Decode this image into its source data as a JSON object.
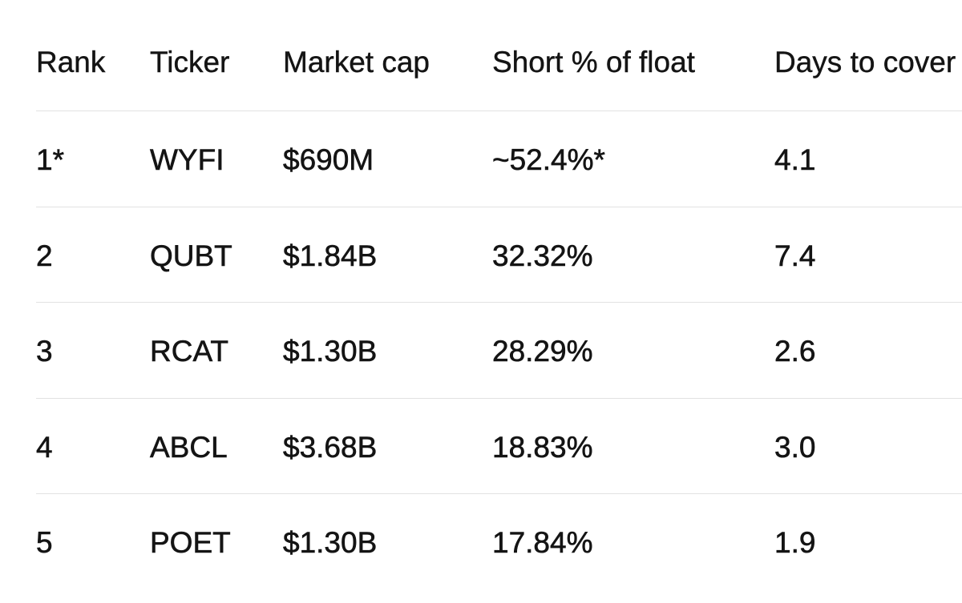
{
  "table": {
    "header": [
      "Rank",
      "Ticker",
      "Market cap",
      "Short % of float",
      "Days to cover"
    ],
    "rows": [
      [
        "1*",
        "WYFI",
        "$690M",
        "~52.4%*",
        "4.1"
      ],
      [
        "2",
        "QUBT",
        "$1.84B",
        "32.32%",
        "7.4"
      ],
      [
        "3",
        "RCAT",
        "$1.30B",
        "28.29%",
        "2.6"
      ],
      [
        "4",
        "ABCL",
        "$3.68B",
        "18.83%",
        "3.0"
      ],
      [
        "5",
        "POET",
        "$1.30B",
        "17.84%",
        "1.9"
      ]
    ]
  }
}
